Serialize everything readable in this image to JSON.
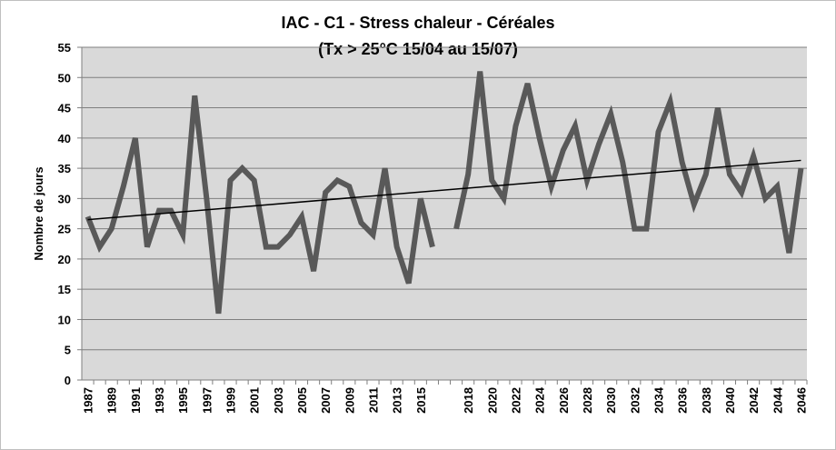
{
  "chart_data": {
    "type": "line",
    "title": "IAC - C1 - Stress chaleur - Céréales",
    "subtitle": "(Tx > 25°C 15/04 au 15/07)",
    "y_label": "Nombre de jours",
    "categories": [
      "1987",
      null,
      "1989",
      null,
      "1991",
      null,
      "1993",
      null,
      "1995",
      null,
      "1997",
      null,
      "1999",
      null,
      "2001",
      null,
      "2003",
      null,
      "2005",
      null,
      "2007",
      null,
      "2009",
      null,
      "2011",
      null,
      "2013",
      null,
      "2015",
      null,
      null,
      null,
      "2018",
      null,
      "2020",
      null,
      "2022",
      null,
      "2024",
      null,
      "2026",
      null,
      "2028",
      null,
      "2030",
      null,
      "2032",
      null,
      "2034",
      null,
      "2036",
      null,
      "2038",
      null,
      "2040",
      null,
      "2042",
      null,
      "2044",
      null,
      "2046"
    ],
    "series": [
      {
        "color": "#595959",
        "values": [
          27,
          22,
          25,
          32,
          40,
          22,
          28,
          28,
          24,
          47,
          30,
          11,
          33,
          35,
          33,
          22,
          22,
          24,
          27,
          18,
          31,
          33,
          32,
          26,
          24,
          35,
          22,
          16,
          30,
          22,
          null,
          25,
          34,
          51,
          33,
          30,
          42,
          49,
          40,
          32,
          38,
          42,
          33,
          39,
          44,
          36,
          25,
          25,
          41,
          46,
          36,
          29,
          34,
          45,
          34,
          31,
          37,
          30,
          32,
          21,
          35
        ]
      }
    ],
    "trendline": {
      "color": "#000000",
      "values": [
        26.5,
        36.3
      ]
    },
    "ylim": [
      0,
      55
    ],
    "yticks": [
      0,
      5,
      10,
      15,
      20,
      25,
      30,
      35,
      40,
      45,
      50,
      55
    ],
    "grid": true
  }
}
